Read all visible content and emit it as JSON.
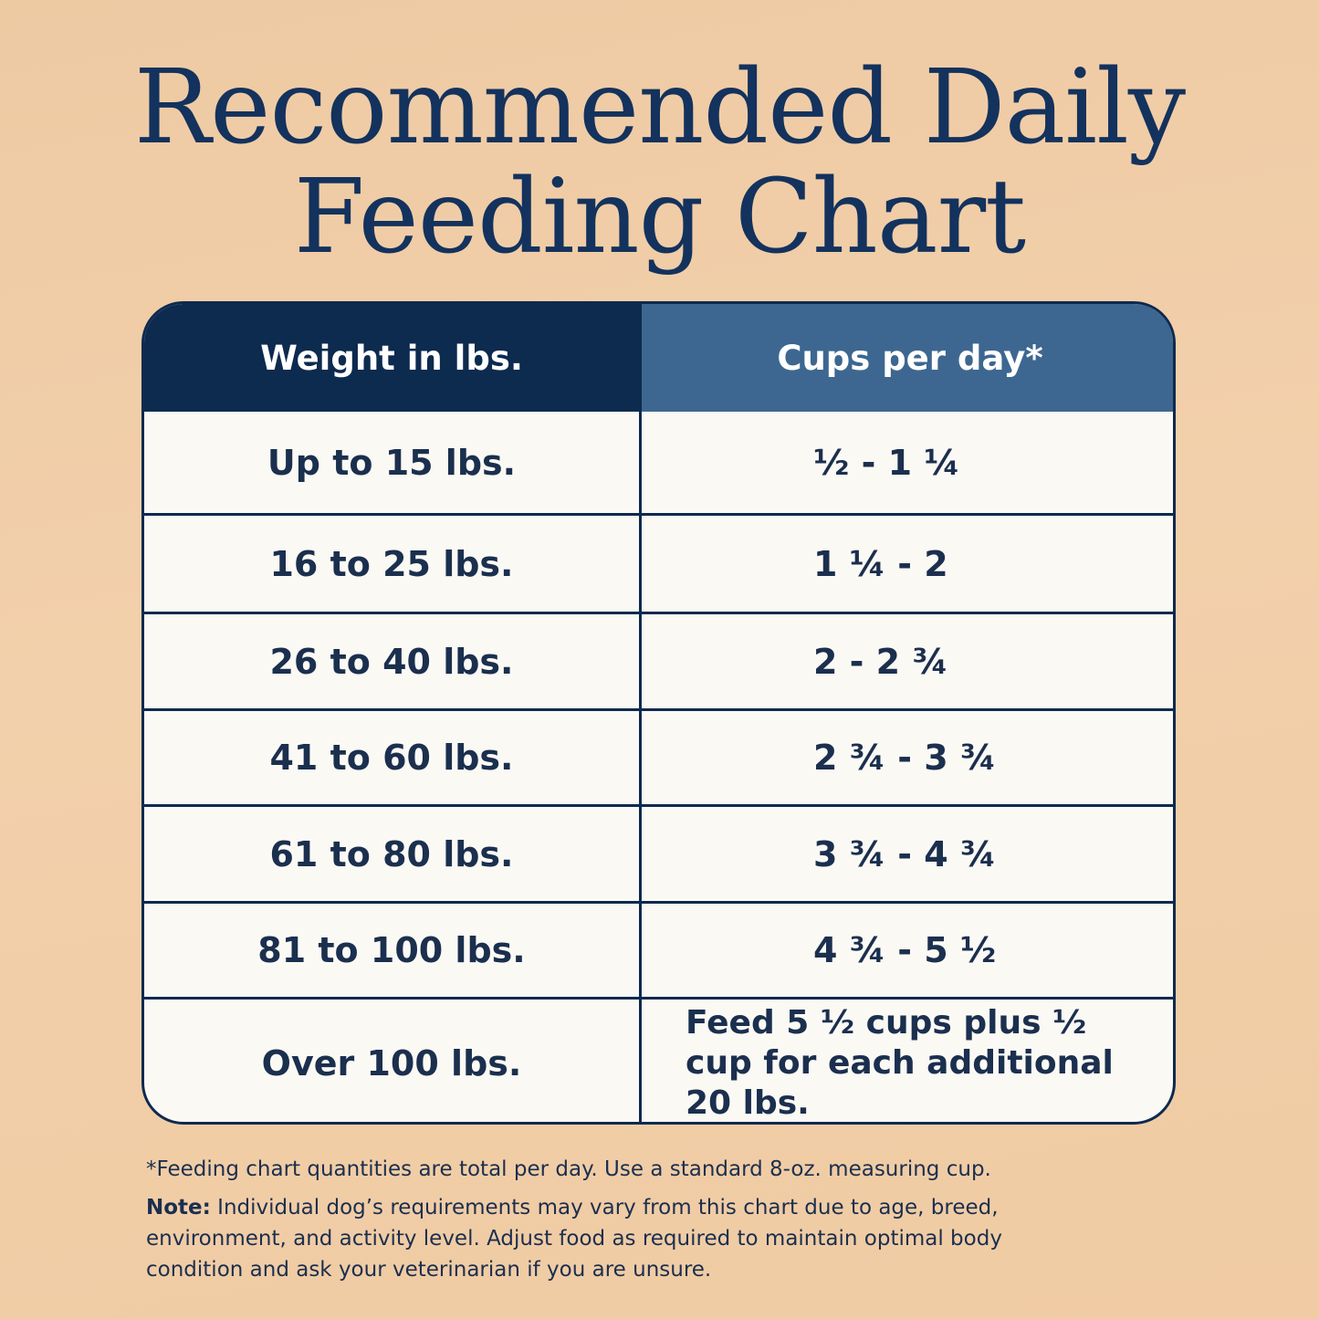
{
  "title_lines": [
    "Recommended Daily",
    "Feeding Chart"
  ],
  "table": {
    "header": [
      "Weight in lbs.",
      "Cups per day*"
    ],
    "rows": [
      [
        "Up to 15 lbs.",
        "½ - 1 ¼"
      ],
      [
        "16 to 25 lbs.",
        "1 ¼ - 2"
      ],
      [
        "26 to 40 lbs.",
        "2 - 2 ¾"
      ],
      [
        "41 to 60 lbs.",
        "2 ¾ - 3 ¾"
      ],
      [
        "61 to 80 lbs.",
        "3 ¾ - 4 ¾"
      ],
      [
        "81 to 100 lbs.",
        "4 ¾ - 5 ½"
      ],
      [
        "Over 100 lbs.",
        "Feed 5 ½ cups plus ½ cup for each additional 20 lbs."
      ]
    ]
  },
  "footnote": "*Feeding chart quantities are total per day. Use a standard 8-oz. measuring cup.",
  "note": {
    "label": "Note:",
    "text": "Individual dog’s requirements may vary from this chart due to age, breed, environment, and activity level. Adjust food as required to maintain optimal body condition and ask your veterinarian if you are unsure."
  }
}
